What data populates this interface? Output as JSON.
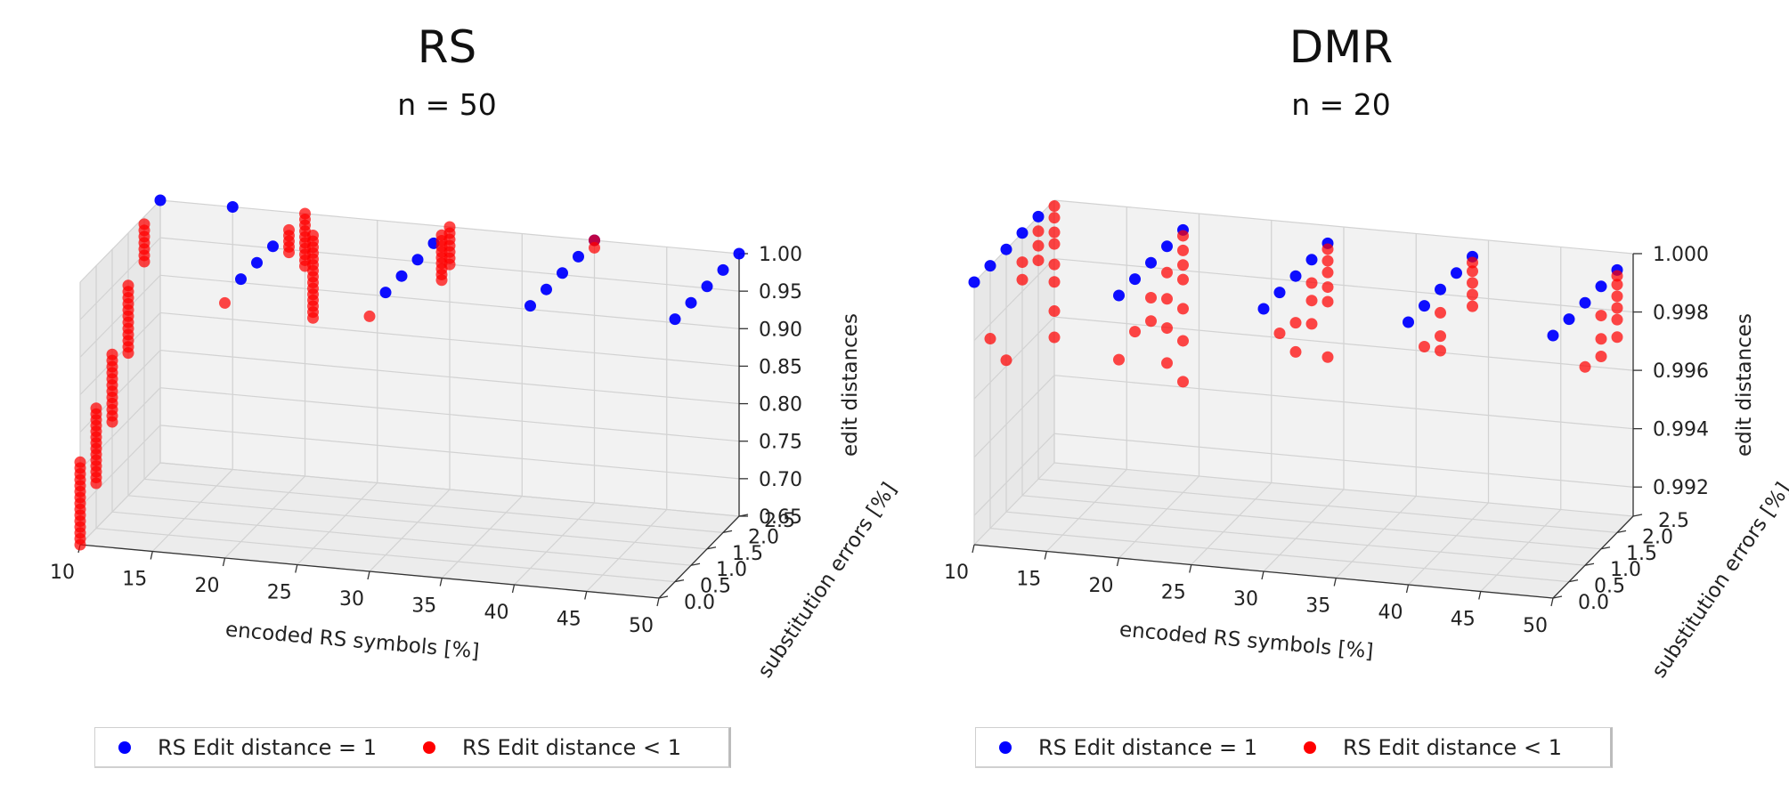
{
  "chart_data": [
    {
      "type": "scatter",
      "title": "RS",
      "subtitle": "n = 50",
      "xlabel": "encoded RS symbols [%]",
      "ylabel": "substitution errors [%]",
      "zlabel": "edit distances",
      "xlim": [
        10,
        50
      ],
      "ylim": [
        0,
        2.5
      ],
      "zlim": [
        0.65,
        1.0
      ],
      "xticks": [
        "10",
        "15",
        "20",
        "25",
        "30",
        "35",
        "40",
        "45",
        "50"
      ],
      "yticks": [
        "0.0",
        "0.5",
        "1.0",
        "1.5",
        "2.0",
        "2.5"
      ],
      "zticks": [
        "0.65",
        "0.70",
        "0.75",
        "0.80",
        "0.85",
        "0.90",
        "0.95",
        "1.00"
      ],
      "grid": true,
      "legend_position": "bottom",
      "series": [
        {
          "name": "RS Edit distance = 1",
          "color": "#0000ff",
          "points": [
            [
              10,
              2.5,
              1.0
            ],
            [
              15,
              2.5,
              1.0
            ],
            [
              20,
              0.5,
              1.0
            ],
            [
              20,
              1.0,
              1.0
            ],
            [
              20,
              1.5,
              1.0
            ],
            [
              30,
              0.5,
              1.0
            ],
            [
              30,
              1.0,
              1.0
            ],
            [
              30,
              1.5,
              1.0
            ],
            [
              30,
              2.0,
              1.0
            ],
            [
              40,
              0.5,
              1.0
            ],
            [
              40,
              1.0,
              1.0
            ],
            [
              40,
              1.5,
              1.0
            ],
            [
              40,
              2.0,
              1.0
            ],
            [
              40,
              2.5,
              1.0
            ],
            [
              50,
              0.5,
              1.0
            ],
            [
              50,
              1.0,
              1.0
            ],
            [
              50,
              1.5,
              1.0
            ],
            [
              50,
              2.0,
              1.0
            ],
            [
              50,
              2.5,
              1.0
            ]
          ]
        },
        {
          "name": "RS Edit distance < 1",
          "color": "#ff0000",
          "groups": [
            {
              "x": 10,
              "y": 2.0,
              "z_min": 0.94,
              "z_max": 0.99
            },
            {
              "x": 10,
              "y": 1.5,
              "z_min": 0.84,
              "z_max": 0.93
            },
            {
              "x": 10,
              "y": 1.0,
              "z_min": 0.77,
              "z_max": 0.86
            },
            {
              "x": 10,
              "y": 0.5,
              "z_min": 0.71,
              "z_max": 0.81
            },
            {
              "x": 10,
              "y": 0.0,
              "z_min": 0.65,
              "z_max": 0.76
            },
            {
              "x": 20,
              "y": 2.0,
              "z_min": 0.97,
              "z_max": 1.0
            },
            {
              "x": 20,
              "y": 2.5,
              "z_min": 0.93,
              "z_max": 1.0
            },
            {
              "x": 20,
              "y": 0.0,
              "z_min": 0.99,
              "z_max": 0.99
            },
            {
              "x": 20,
              "y": 2.5,
              "z_min": 0.85,
              "z_max": 0.96,
              "note_y": 2.75
            },
            {
              "x": 30,
              "y": 2.5,
              "z_min": 0.95,
              "z_max": 1.0
            },
            {
              "x": 30,
              "y": 2.25,
              "z_min": 0.94,
              "z_max": 1.0
            },
            {
              "x": 30,
              "y": 0.0,
              "z_min": 0.99,
              "z_max": 0.99
            },
            {
              "x": 40,
              "y": 2.5,
              "z_min": 0.99,
              "z_max": 1.0
            }
          ]
        }
      ]
    },
    {
      "type": "scatter",
      "title": "DMR",
      "subtitle": "n = 20",
      "xlabel": "encoded RS symbols [%]",
      "ylabel": "substitution errors [%]",
      "zlabel": "edit distances",
      "xlim": [
        10,
        50
      ],
      "ylim": [
        0,
        2.5
      ],
      "zlim": [
        0.991,
        1.0
      ],
      "xticks": [
        "10",
        "15",
        "20",
        "25",
        "30",
        "35",
        "40",
        "45",
        "50"
      ],
      "yticks": [
        "0.0",
        "0.5",
        "1.0",
        "1.5",
        "2.0",
        "2.5"
      ],
      "zticks": [
        "0.992",
        "0.994",
        "0.996",
        "0.998",
        "1.000"
      ],
      "grid": true,
      "legend_position": "bottom",
      "series": [
        {
          "name": "RS Edit distance = 1",
          "color": "#0000ff",
          "points": [
            [
              10,
              0.0,
              1.0
            ],
            [
              10,
              0.5,
              1.0
            ],
            [
              10,
              1.0,
              1.0
            ],
            [
              10,
              1.5,
              1.0
            ],
            [
              10,
              2.0,
              1.0
            ],
            [
              20,
              0.0,
              1.0
            ],
            [
              20,
              0.5,
              1.0
            ],
            [
              20,
              1.0,
              1.0
            ],
            [
              20,
              1.5,
              1.0
            ],
            [
              20,
              2.0,
              1.0
            ],
            [
              30,
              0.0,
              1.0
            ],
            [
              30,
              0.5,
              1.0
            ],
            [
              30,
              1.0,
              1.0
            ],
            [
              30,
              1.5,
              1.0
            ],
            [
              30,
              2.0,
              1.0
            ],
            [
              40,
              0.0,
              1.0
            ],
            [
              40,
              0.5,
              1.0
            ],
            [
              40,
              1.0,
              1.0
            ],
            [
              40,
              1.5,
              1.0
            ],
            [
              40,
              2.0,
              1.0
            ],
            [
              50,
              0.0,
              1.0
            ],
            [
              50,
              0.5,
              1.0
            ],
            [
              50,
              1.0,
              1.0
            ],
            [
              50,
              1.5,
              1.0
            ],
            [
              50,
              2.0,
              1.0
            ]
          ]
        },
        {
          "name": "RS Edit distance < 1",
          "color": "#ff0000",
          "points": [
            [
              10,
              0.5,
              0.9975
            ],
            [
              10,
              1.0,
              0.9962
            ],
            [
              10,
              1.5,
              0.999
            ],
            [
              10,
              1.5,
              0.9984
            ],
            [
              10,
              2.0,
              0.9995
            ],
            [
              10,
              2.0,
              0.999
            ],
            [
              10,
              2.0,
              0.9985
            ],
            [
              10,
              2.5,
              0.9998
            ],
            [
              10,
              2.5,
              0.9994
            ],
            [
              10,
              2.5,
              0.9989
            ],
            [
              10,
              2.5,
              0.9985
            ],
            [
              10,
              2.5,
              0.9978
            ],
            [
              10,
              2.5,
              0.9972
            ],
            [
              10,
              2.5,
              0.9962
            ],
            [
              10,
              2.5,
              0.9953
            ],
            [
              20,
              0.0,
              0.9978
            ],
            [
              20,
              0.5,
              0.9982
            ],
            [
              20,
              1.0,
              0.9988
            ],
            [
              20,
              1.0,
              0.998
            ],
            [
              20,
              1.5,
              0.9991
            ],
            [
              20,
              1.5,
              0.9982
            ],
            [
              20,
              1.5,
              0.9972
            ],
            [
              20,
              1.5,
              0.996
            ],
            [
              20,
              2.0,
              0.9998
            ],
            [
              20,
              2.0,
              0.9993
            ],
            [
              20,
              2.0,
              0.9988
            ],
            [
              20,
              2.0,
              0.9983
            ],
            [
              20,
              2.0,
              0.9973
            ],
            [
              20,
              2.0,
              0.9962
            ],
            [
              20,
              2.0,
              0.9948
            ],
            [
              30,
              0.5,
              0.9986
            ],
            [
              30,
              1.0,
              0.9984
            ],
            [
              30,
              1.0,
              0.9974
            ],
            [
              30,
              1.5,
              0.9992
            ],
            [
              30,
              1.5,
              0.9986
            ],
            [
              30,
              1.5,
              0.9978
            ],
            [
              30,
              2.0,
              0.9998
            ],
            [
              30,
              2.0,
              0.9994
            ],
            [
              30,
              2.0,
              0.999
            ],
            [
              30,
              2.0,
              0.9985
            ],
            [
              30,
              2.0,
              0.998
            ],
            [
              30,
              2.0,
              0.9961
            ],
            [
              40,
              0.5,
              0.9986
            ],
            [
              40,
              1.0,
              0.9992
            ],
            [
              40,
              1.0,
              0.9984
            ],
            [
              40,
              1.0,
              0.9979
            ],
            [
              40,
              2.0,
              0.9998
            ],
            [
              40,
              2.0,
              0.9995
            ],
            [
              40,
              2.0,
              0.9991
            ],
            [
              40,
              2.0,
              0.9987
            ],
            [
              40,
              2.0,
              0.9983
            ],
            [
              50,
              1.0,
              0.9978
            ],
            [
              50,
              1.5,
              0.999
            ],
            [
              50,
              1.5,
              0.9982
            ],
            [
              50,
              1.5,
              0.9976
            ],
            [
              50,
              2.0,
              0.9998
            ],
            [
              50,
              2.0,
              0.9995
            ],
            [
              50,
              2.0,
              0.9991
            ],
            [
              50,
              2.0,
              0.9987
            ],
            [
              50,
              2.0,
              0.9983
            ],
            [
              50,
              2.0,
              0.9977
            ]
          ]
        }
      ]
    }
  ]
}
